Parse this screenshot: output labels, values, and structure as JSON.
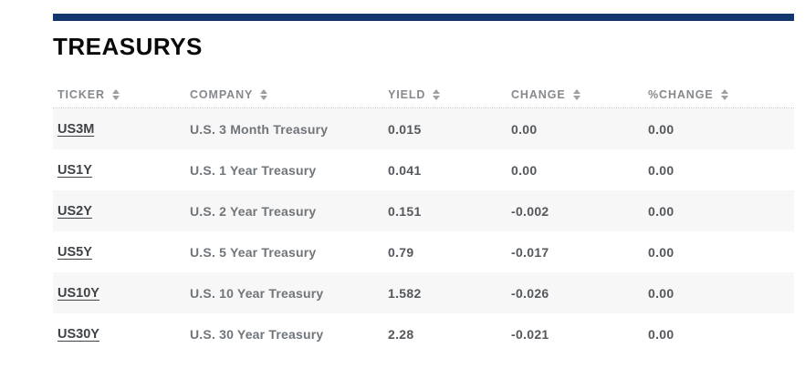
{
  "module": {
    "title": "TREASURYS",
    "accent_bar_color": "#14356e",
    "alt_row_color": "#f7f7f7"
  },
  "table": {
    "columns": [
      {
        "label": "TICKER",
        "sortable": true
      },
      {
        "label": "COMPANY",
        "sortable": true
      },
      {
        "label": "YIELD",
        "sortable": true
      },
      {
        "label": "CHANGE",
        "sortable": true
      },
      {
        "label": "%CHANGE",
        "sortable": true
      }
    ],
    "rows": [
      {
        "ticker": "US3M",
        "company": "U.S. 3 Month Treasury",
        "yield": "0.015",
        "change": "0.00",
        "pct_change": "0.00"
      },
      {
        "ticker": "US1Y",
        "company": "U.S. 1 Year Treasury",
        "yield": "0.041",
        "change": "0.00",
        "pct_change": "0.00"
      },
      {
        "ticker": "US2Y",
        "company": "U.S. 2 Year Treasury",
        "yield": "0.151",
        "change": "-0.002",
        "pct_change": "0.00"
      },
      {
        "ticker": "US5Y",
        "company": "U.S. 5 Year Treasury",
        "yield": "0.79",
        "change": "-0.017",
        "pct_change": "0.00"
      },
      {
        "ticker": "US10Y",
        "company": "U.S. 10 Year Treasury",
        "yield": "1.582",
        "change": "-0.026",
        "pct_change": "0.00"
      },
      {
        "ticker": "US30Y",
        "company": "U.S. 30 Year Treasury",
        "yield": "2.28",
        "change": "-0.021",
        "pct_change": "0.00"
      }
    ]
  }
}
